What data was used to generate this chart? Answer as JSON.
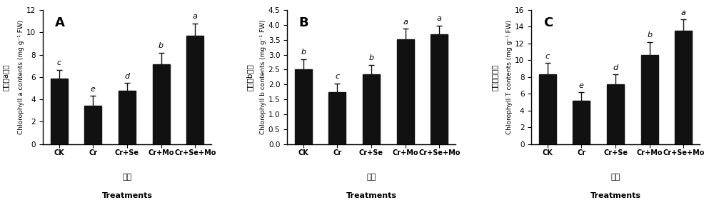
{
  "panels": [
    {
      "label": "A",
      "ylabel_chinese": "叶绿素a含量",
      "ylabel_english": "Chlorophyll a contents (mg g⁻¹ FW)",
      "xlabel_chinese": "处理",
      "xlabel_english": "Treatments",
      "categories": [
        "CK",
        "Cr",
        "Cr+Se",
        "Cr+Mo",
        "Cr+Se+Mo"
      ],
      "values": [
        5.85,
        3.4,
        4.8,
        7.15,
        9.7
      ],
      "errors": [
        0.8,
        0.9,
        0.65,
        1.0,
        1.1
      ],
      "letters": [
        "c",
        "e",
        "d",
        "b",
        "a"
      ],
      "ylim": [
        0,
        12.0
      ],
      "yticks": [
        0.0,
        2.0,
        4.0,
        6.0,
        8.0,
        10.0,
        12.0
      ]
    },
    {
      "label": "B",
      "ylabel_chinese": "叶绿素b含量",
      "ylabel_english": "Chlorophyll b contents (mg g⁻¹ FW)",
      "xlabel_chinese": "处理",
      "xlabel_english": "Treatments",
      "categories": [
        "CK",
        "Cr",
        "Cr+Se",
        "Cr+Mo",
        "Cr+Se+Mo"
      ],
      "values": [
        2.5,
        1.75,
        2.35,
        3.52,
        3.68
      ],
      "errors": [
        0.35,
        0.28,
        0.3,
        0.35,
        0.3
      ],
      "letters": [
        "b",
        "c",
        "b",
        "a",
        "a"
      ],
      "ylim": [
        0,
        4.5
      ],
      "yticks": [
        0.0,
        0.5,
        1.0,
        1.5,
        2.0,
        2.5,
        3.0,
        3.5,
        4.0,
        4.5
      ]
    },
    {
      "label": "C",
      "ylabel_chinese": "总叶绿素含量",
      "ylabel_english": "Chlorophyll T contents (mg g⁻¹ FW)",
      "xlabel_chinese": "处理",
      "xlabel_english": "Treatments",
      "categories": [
        "CK",
        "Cr",
        "Cr+Se",
        "Cr+Mo",
        "Cr+Se+Mo"
      ],
      "values": [
        8.35,
        5.15,
        7.1,
        10.65,
        13.55
      ],
      "errors": [
        1.3,
        1.0,
        1.2,
        1.5,
        1.3
      ],
      "letters": [
        "c",
        "e",
        "d",
        "b",
        "a"
      ],
      "ylim": [
        0,
        16.0
      ],
      "yticks": [
        0.0,
        2.0,
        4.0,
        6.0,
        8.0,
        10.0,
        12.0,
        14.0,
        16.0
      ]
    }
  ],
  "bar_color": "#111111",
  "error_color": "#111111",
  "bar_width": 0.5,
  "figure_width": 10.0,
  "figure_height": 2.8,
  "dpi": 100
}
